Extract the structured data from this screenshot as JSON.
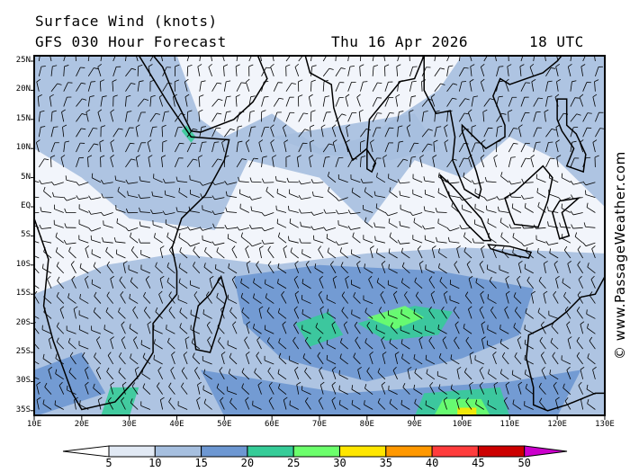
{
  "header": {
    "title": "Surface Wind (knots)",
    "model": "GFS 030 Hour Forecast",
    "date": "Thu 16 Apr 2026",
    "time": "18 UTC"
  },
  "credit": "© www.PassageWeather.com",
  "map": {
    "lat_labels": [
      "25N",
      "20N",
      "15N",
      "10N",
      "5N",
      "EQ",
      "5S",
      "10S",
      "15S",
      "20S",
      "25S",
      "30S",
      "35S"
    ],
    "lon_labels": [
      "10E",
      "20E",
      "30E",
      "40E",
      "50E",
      "60E",
      "70E",
      "80E",
      "90E",
      "100E",
      "110E",
      "120E",
      "130E"
    ]
  },
  "colorbar": {
    "unit": "knots",
    "labels": [
      "5",
      "10",
      "15",
      "20",
      "25",
      "30",
      "35",
      "40",
      "45",
      "50"
    ],
    "colors": [
      "#e1e9f4",
      "#a6bfdf",
      "#6d97d2",
      "#36cc98",
      "#6cff6c",
      "#ffe600",
      "#ff9800",
      "#ff3c3c",
      "#cc0000",
      "#cc00cc"
    ]
  }
}
